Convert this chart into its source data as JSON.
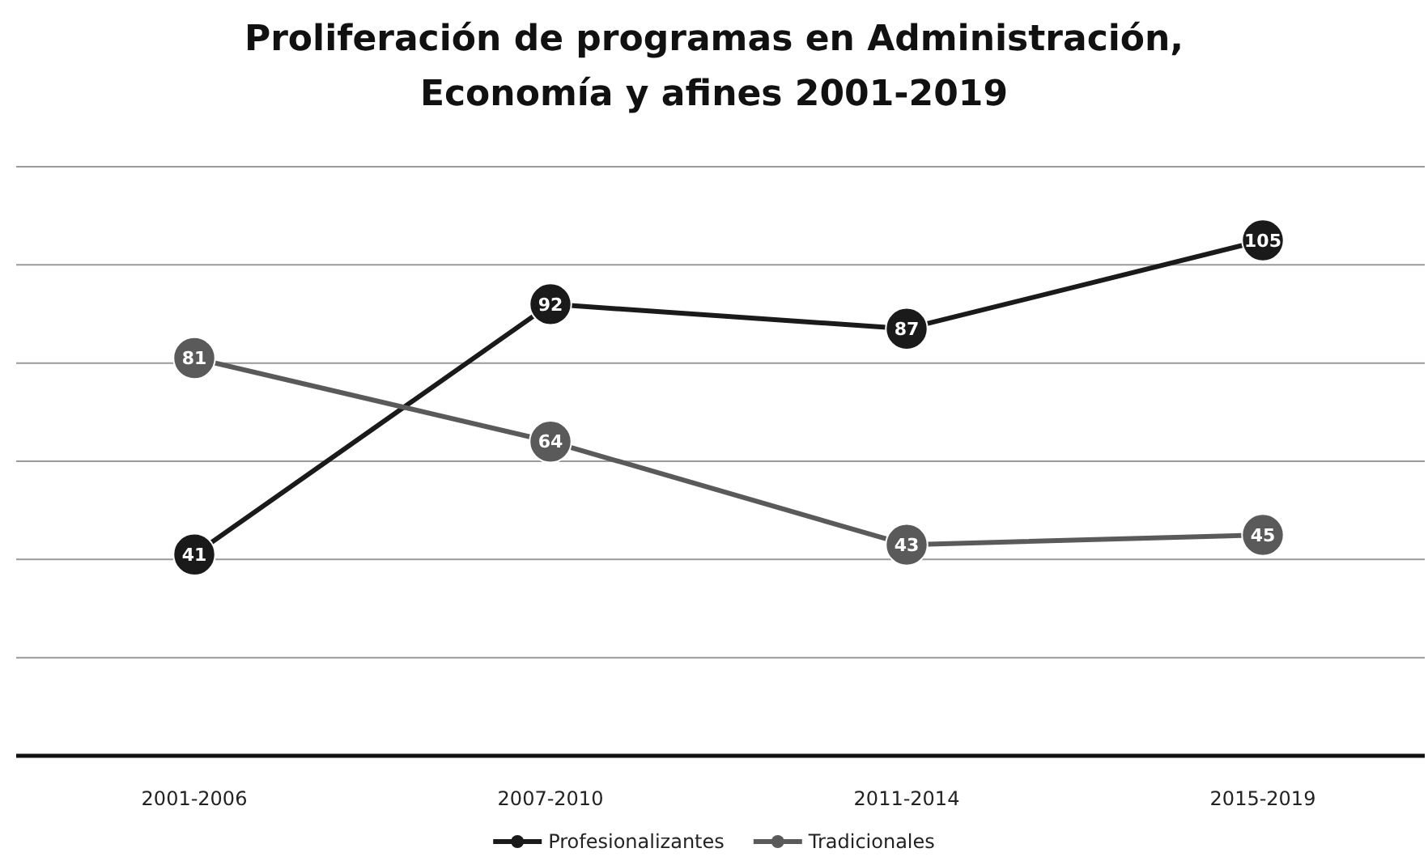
{
  "chart_data": {
    "type": "line",
    "title": "Proliferación de programas en Administración, Economía y afines 2001-2019",
    "categories": [
      "2001-2006",
      "2007-2010",
      "2011-2014",
      "2015-2019"
    ],
    "series": [
      {
        "name": "Profesionalizantes",
        "color": "#1a1a1a",
        "values": [
          41,
          92,
          87,
          105
        ]
      },
      {
        "name": "Tradicionales",
        "color": "#5a5a5a",
        "values": [
          81,
          64,
          43,
          45
        ]
      }
    ],
    "ylim": [
      0,
      120
    ],
    "yticks": [
      {
        "value": 0,
        "label": null
      },
      {
        "value": 20,
        "label": null
      },
      {
        "value": 40,
        "label": null
      },
      {
        "value": 60,
        "label": null
      },
      {
        "value": 80,
        "label": null
      },
      {
        "value": 100,
        "label": null
      },
      {
        "value": 120,
        "label": null
      }
    ],
    "tick_labels": "x",
    "grid": "y",
    "legend": "bottom",
    "marker": "circle",
    "line_style": "solid",
    "data_labels": true
  }
}
